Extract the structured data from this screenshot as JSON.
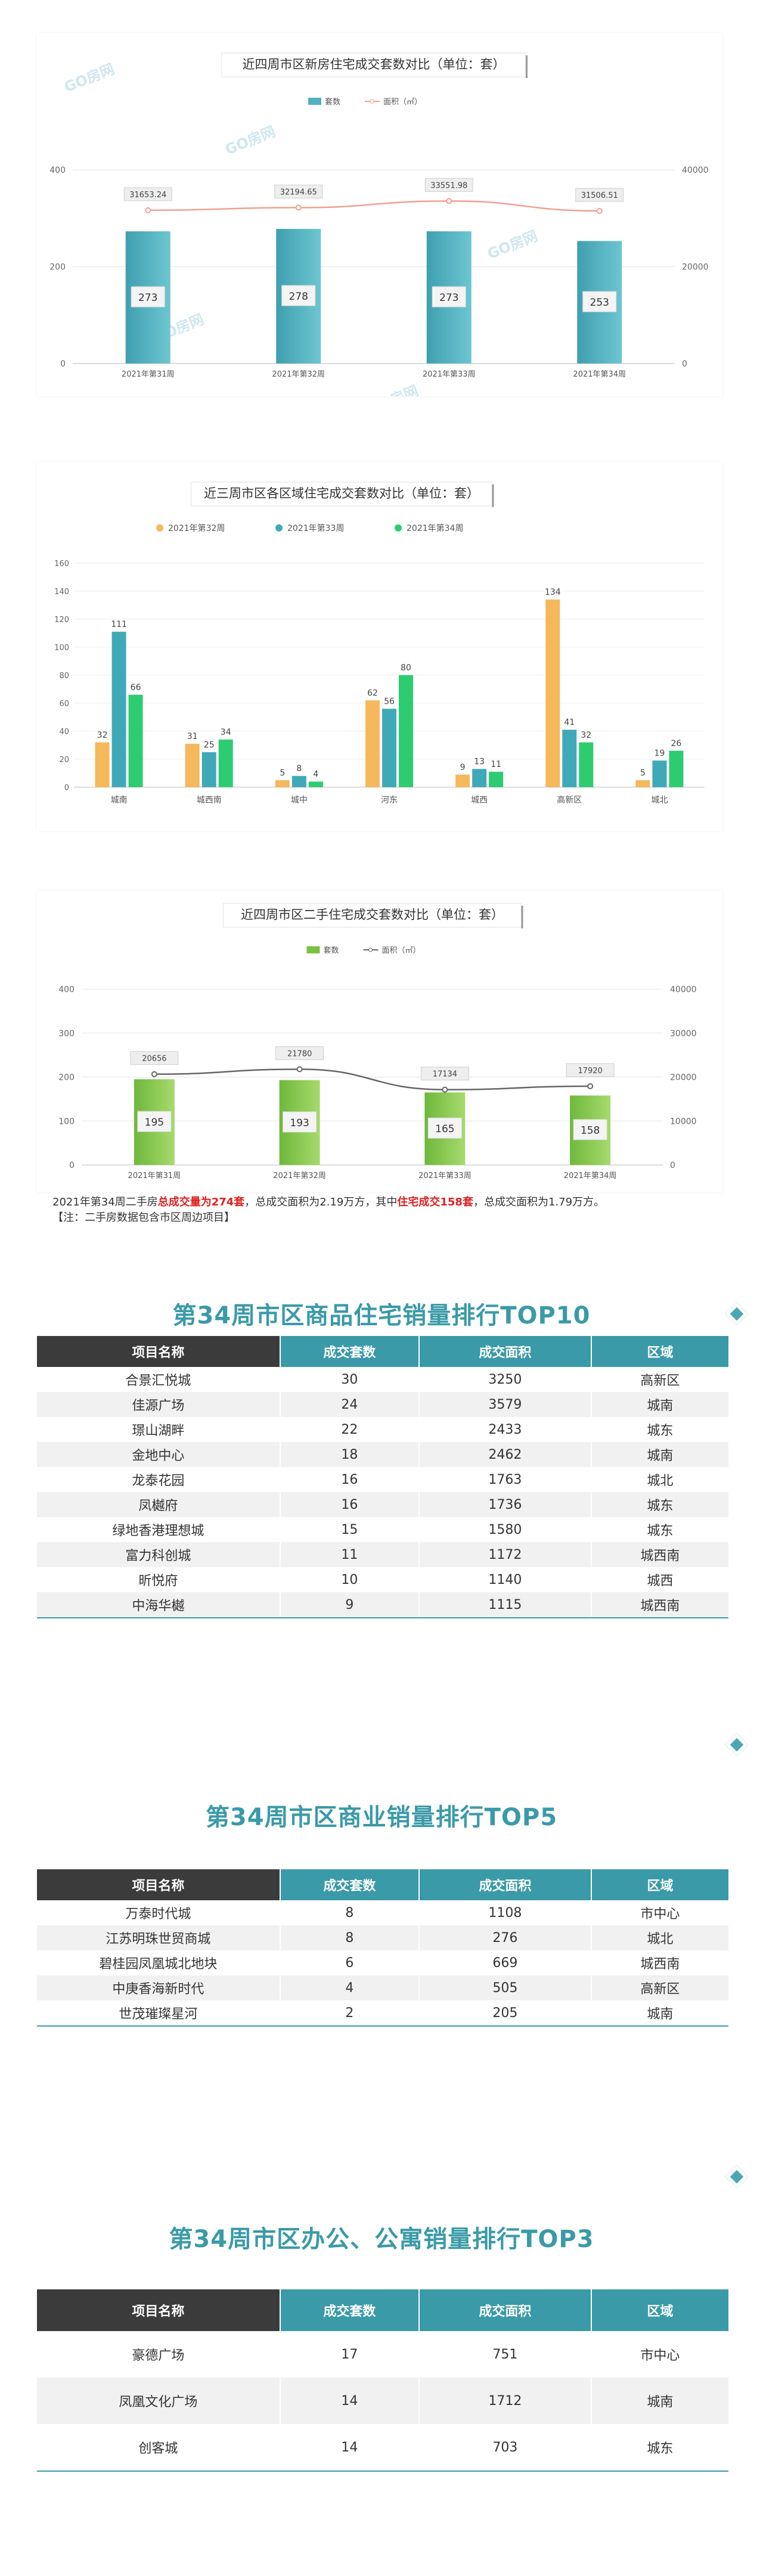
{
  "chart_data": [
    {
      "type": "bar",
      "title": "近四周市区新房住宅成交套数对比（单位：套）",
      "legend_position": "top-center",
      "categories": [
        "2021年第31周",
        "2021年第32周",
        "2021年第33周",
        "2021年第34周"
      ],
      "series": [
        {
          "name": "套数",
          "kind": "bar",
          "axis": "left",
          "values": [
            273,
            278,
            273,
            253
          ],
          "color": "#4fb3bf"
        },
        {
          "name": "面积（㎡）",
          "kind": "line",
          "axis": "right",
          "values": [
            31653.24,
            32194.65,
            33551.98,
            31506.51
          ],
          "color": "#f0a090"
        }
      ],
      "value_labels": [
        "273",
        "278",
        "273",
        "253"
      ],
      "line_labels": [
        "31653.24",
        "32194.65",
        "33551.98",
        "31506.51"
      ],
      "ylim": [
        0,
        400
      ],
      "yticks": [
        0,
        200,
        400
      ],
      "y2lim": [
        0,
        40000
      ],
      "y2ticks": [
        0,
        20000,
        40000
      ],
      "grid": true
    },
    {
      "type": "bar",
      "title": "近三周市区各区域住宅成交套数对比（单位：套）",
      "legend_position": "top-center",
      "categories": [
        "城南",
        "城西南",
        "城中",
        "河东",
        "城西",
        "高新区",
        "城北"
      ],
      "series": [
        {
          "name": "2021年第32周",
          "values": [
            32,
            31,
            5,
            62,
            9,
            134,
            5
          ],
          "color": "#f5b85a"
        },
        {
          "name": "2021年第33周",
          "values": [
            111,
            25,
            8,
            56,
            13,
            41,
            19
          ],
          "color": "#3fa9b8"
        },
        {
          "name": "2021年第34周",
          "values": [
            66,
            34,
            4,
            80,
            11,
            32,
            26
          ],
          "color": "#2ecc71"
        }
      ],
      "ylim": [
        0,
        160
      ],
      "yticks": [
        0,
        20,
        40,
        60,
        80,
        100,
        120,
        140,
        160
      ],
      "grid": true
    },
    {
      "type": "bar",
      "title": "近四周市区二手住宅成交套数对比（单位：套）",
      "legend_position": "top-center",
      "categories": [
        "2021年第31周",
        "2021年第32周",
        "2021年第33周",
        "2021年第34周"
      ],
      "series": [
        {
          "name": "套数",
          "kind": "bar",
          "axis": "left",
          "values": [
            195,
            193,
            165,
            158
          ],
          "color": "#7cc242"
        },
        {
          "name": "面积（㎡）",
          "kind": "line",
          "axis": "right",
          "values": [
            20656,
            21780,
            17134,
            17920
          ],
          "color": "#666666"
        }
      ],
      "value_labels": [
        "195",
        "193",
        "165",
        "158"
      ],
      "line_labels": [
        "20656",
        "21780",
        "17134",
        "17920"
      ],
      "ylim": [
        0,
        400
      ],
      "yticks": [
        0,
        100,
        200,
        300,
        400
      ],
      "y2lim": [
        0,
        40000
      ],
      "y2ticks": [
        0,
        10000,
        20000,
        30000,
        40000
      ],
      "grid": true
    }
  ],
  "watermark": "GO房网",
  "note": {
    "p1": "2021年第34周二手房",
    "h1": "总成交量为274套",
    "p2": "，总成交面积为2.19万方，其中",
    "h2": "住宅成交158套",
    "p3": "，总成交面积为1.79万方。",
    "line2": "【注：二手房数据包含市区周边项目】"
  },
  "table_header": {
    "name": "项目名称",
    "units": "成交套数",
    "area": "成交面积",
    "region": "区域"
  },
  "residential_top10": {
    "title": "第34周市区商品住宅销量排行TOP10",
    "rows": [
      {
        "name": "合景汇悦城",
        "units": "30",
        "area": "3250",
        "region": "高新区"
      },
      {
        "name": "佳源广场",
        "units": "24",
        "area": "3579",
        "region": "城南"
      },
      {
        "name": "璟山湖畔",
        "units": "22",
        "area": "2433",
        "region": "城东"
      },
      {
        "name": "金地中心",
        "units": "18",
        "area": "2462",
        "region": "城南"
      },
      {
        "name": "龙泰花园",
        "units": "16",
        "area": "1763",
        "region": "城北"
      },
      {
        "name": "凤樾府",
        "units": "16",
        "area": "1736",
        "region": "城东"
      },
      {
        "name": "绿地香港理想城",
        "units": "15",
        "area": "1580",
        "region": "城东"
      },
      {
        "name": "富力科创城",
        "units": "11",
        "area": "1172",
        "region": "城西南"
      },
      {
        "name": "昕悦府",
        "units": "10",
        "area": "1140",
        "region": "城西"
      },
      {
        "name": "中海华樾",
        "units": "9",
        "area": "1115",
        "region": "城西南"
      }
    ]
  },
  "commercial_top5": {
    "title": "第34周市区商业销量排行TOP5",
    "rows": [
      {
        "name": "万泰时代城",
        "units": "8",
        "area": "1108",
        "region": "市中心"
      },
      {
        "name": "江苏明珠世贸商城",
        "units": "8",
        "area": "276",
        "region": "城北"
      },
      {
        "name": "碧桂园凤凰城北地块",
        "units": "6",
        "area": "669",
        "region": "城西南"
      },
      {
        "name": "中庚香海新时代",
        "units": "4",
        "area": "505",
        "region": "高新区"
      },
      {
        "name": "世茂璀璨星河",
        "units": "2",
        "area": "205",
        "region": "城南"
      }
    ]
  },
  "office_top3": {
    "title": "第34周市区办公、公寓销量排行TOP3",
    "rows": [
      {
        "name": "豪德广场",
        "units": "17",
        "area": "751",
        "region": "市中心"
      },
      {
        "name": "凤凰文化广场",
        "units": "14",
        "area": "1712",
        "region": "城南"
      },
      {
        "name": "创客城",
        "units": "14",
        "area": "703",
        "region": "城东"
      }
    ]
  }
}
